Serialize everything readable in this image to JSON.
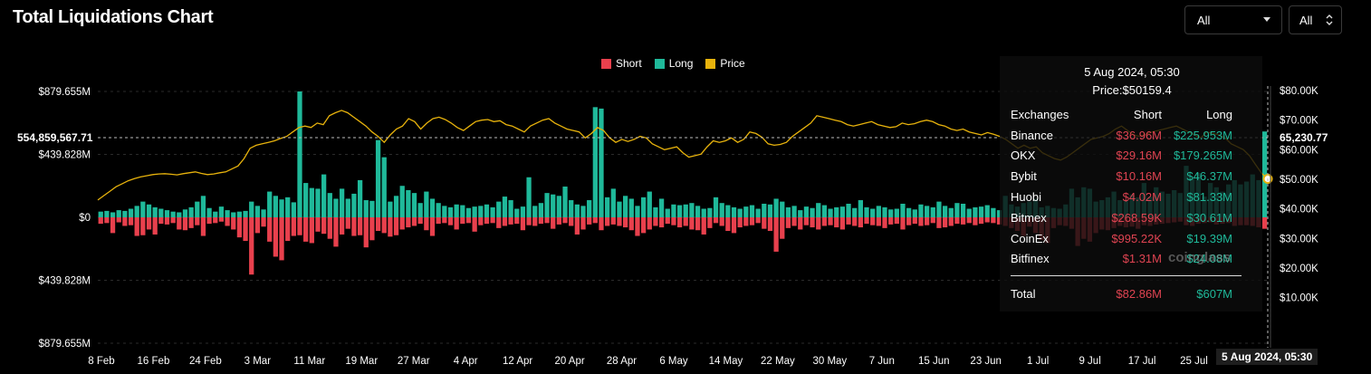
{
  "header": {
    "title": "Total Liquidations Chart"
  },
  "controls": {
    "exchange_select": {
      "value": "All",
      "icon": "chevron-down-icon"
    },
    "coin_select": {
      "value": "All",
      "icon": "up-down-chevron-icon"
    }
  },
  "colors": {
    "short": "#e8404d",
    "long": "#1fb99a",
    "price": "#e8b30c"
  },
  "tooltip": {
    "date": "5 Aug 2024, 05:30",
    "price": "Price:$50159.4",
    "headers": [
      "Exchanges",
      "Short",
      "Long"
    ],
    "rows": [
      {
        "exchange": "Binance",
        "short": "$36.96M",
        "long": "$225.953M"
      },
      {
        "exchange": "OKX",
        "short": "$29.16M",
        "long": "$179.265M"
      },
      {
        "exchange": "Bybit",
        "short": "$10.16M",
        "long": "$46.37M"
      },
      {
        "exchange": "Huobi",
        "short": "$4.02M",
        "long": "$81.33M"
      },
      {
        "exchange": "Bitmex",
        "short": "$268.59K",
        "long": "$30.61M"
      },
      {
        "exchange": "CoinEx",
        "short": "$995.22K",
        "long": "$19.39M"
      },
      {
        "exchange": "Bitfinex",
        "short": "$1.31M",
        "long": "$24.08M"
      }
    ],
    "total": {
      "label": "Total",
      "short": "$82.86M",
      "long": "$607M"
    }
  },
  "watermark": "coinglass",
  "crosshair": {
    "left_value": "554,859,567.71",
    "right_value": "65,230.77",
    "x_value": "5 Aug 2024, 05:30"
  },
  "chart_data": {
    "type": "bar",
    "title": "Total Liquidations Chart",
    "legend": [
      "Short",
      "Long",
      "Price"
    ],
    "legend_position": "top-center",
    "y_left": {
      "ticks": [
        "$879.655M",
        "$439.828M",
        "$0",
        "$439.828M",
        "$879.655M"
      ],
      "range": [
        -879.655,
        879.655
      ],
      "unit": "M USD"
    },
    "y_right": {
      "ticks": [
        "$80.00K",
        "$70.00K",
        "$60.00K",
        "$50.00K",
        "$40.00K",
        "$30.00K",
        "$20.00K",
        "$10.00K"
      ],
      "range": [
        5000,
        80000
      ]
    },
    "x_ticks": [
      "8 Feb",
      "16 Feb",
      "24 Feb",
      "3 Mar",
      "11 Mar",
      "19 Mar",
      "27 Mar",
      "4 Apr",
      "12 Apr",
      "20 Apr",
      "28 Apr",
      "6 May",
      "14 May",
      "22 May",
      "30 May",
      "7 Jun",
      "15 Jun",
      "23 Jun",
      "1 Jul",
      "9 Jul",
      "17 Jul",
      "25 Jul"
    ],
    "series": [
      {
        "name": "Long",
        "values": [
          40,
          45,
          35,
          50,
          45,
          60,
          80,
          110,
          90,
          70,
          60,
          50,
          40,
          35,
          55,
          70,
          110,
          150,
          65,
          40,
          75,
          50,
          35,
          40,
          45,
          110,
          80,
          55,
          180,
          150,
          125,
          140,
          105,
          880,
          240,
          205,
          200,
          300,
          170,
          130,
          200,
          130,
          165,
          260,
          120,
          115,
          540,
          420,
          110,
          150,
          220,
          190,
          170,
          100,
          180,
          130,
          100,
          80,
          70,
          90,
          85,
          65,
          75,
          80,
          90,
          70,
          110,
          145,
          120,
          60,
          75,
          280,
          80,
          100,
          170,
          160,
          150,
          215,
          120,
          90,
          80,
          120,
          770,
          760,
          140,
          200,
          110,
          150,
          130,
          80,
          140,
          180,
          70,
          130,
          60,
          90,
          85,
          90,
          100,
          80,
          60,
          65,
          140,
          100,
          85,
          70,
          60,
          75,
          85,
          60,
          95,
          90,
          130,
          110,
          70,
          80,
          50,
          75,
          65,
          100,
          85,
          60,
          70,
          75,
          95,
          65,
          120,
          70,
          60,
          80,
          70,
          55,
          60,
          95,
          65,
          55,
          90,
          80,
          70,
          110,
          80,
          65,
          100,
          95,
          60,
          70,
          75,
          85,
          65,
          50,
          150,
          90,
          75,
          100,
          110,
          130,
          70,
          80,
          65,
          60,
          90,
          200,
          140,
          210,
          200,
          110,
          120,
          140,
          180,
          120,
          120,
          160,
          140,
          240,
          145,
          210,
          180,
          165,
          190,
          170,
          360,
          275,
          310,
          145,
          240,
          210,
          180,
          230,
          260,
          230,
          250,
          300,
          260,
          600
        ]
      },
      {
        "name": "Short",
        "values": [
          45,
          40,
          110,
          35,
          60,
          55,
          130,
          125,
          85,
          120,
          45,
          50,
          40,
          85,
          90,
          75,
          55,
          130,
          45,
          40,
          30,
          60,
          85,
          140,
          165,
          400,
          110,
          65,
          170,
          275,
          300,
          165,
          130,
          125,
          170,
          180,
          100,
          115,
          150,
          205,
          120,
          80,
          130,
          125,
          210,
          160,
          95,
          110,
          135,
          125,
          85,
          70,
          60,
          45,
          90,
          130,
          45,
          40,
          55,
          85,
          45,
          40,
          100,
          55,
          45,
          40,
          75,
          60,
          50,
          45,
          90,
          55,
          60,
          45,
          40,
          80,
          50,
          40,
          60,
          120,
          85,
          50,
          40,
          90,
          60,
          50,
          60,
          70,
          90,
          130,
          110,
          85,
          60,
          70,
          45,
          55,
          70,
          60,
          85,
          90,
          120,
          75,
          40,
          60,
          95,
          110,
          70,
          60,
          55,
          40,
          80,
          95,
          240,
          150,
          75,
          60,
          85,
          55,
          70,
          85,
          60,
          55,
          70,
          85,
          50,
          60,
          70,
          45,
          55,
          60,
          75,
          50,
          45,
          85,
          55,
          45,
          60,
          55,
          40,
          75,
          70,
          60,
          45,
          50,
          40,
          55,
          45,
          35,
          40,
          50,
          60,
          75,
          95,
          130,
          65,
          110,
          160,
          180,
          75,
          55,
          60,
          80,
          200,
          150,
          170,
          110,
          85,
          90,
          75,
          60,
          70,
          65,
          80,
          55,
          60,
          50,
          45,
          40,
          35,
          30,
          55,
          60,
          45,
          40,
          35,
          50,
          45,
          40,
          60,
          55,
          55,
          60,
          70,
          80
        ]
      },
      {
        "name": "Price",
        "values": [
          43000,
          44500,
          46000,
          47500,
          48500,
          49500,
          50200,
          50800,
          51200,
          51600,
          51800,
          51900,
          51700,
          51500,
          51900,
          52200,
          52500,
          52000,
          51600,
          51800,
          52200,
          52500,
          53500,
          54500,
          57000,
          60500,
          61500,
          62000,
          62500,
          63000,
          63800,
          64500,
          66000,
          67500,
          68000,
          67500,
          69000,
          68500,
          71500,
          72500,
          73300,
          72500,
          71000,
          69500,
          68000,
          66000,
          64500,
          62500,
          65000,
          67000,
          68000,
          70500,
          69500,
          67000,
          69000,
          70500,
          71000,
          70200,
          69000,
          67500,
          66500,
          68000,
          69500,
          70000,
          70200,
          69500,
          69800,
          68500,
          68000,
          67000,
          66000,
          68000,
          69000,
          70000,
          70500,
          69000,
          68000,
          67000,
          66500,
          66000,
          64000,
          65500,
          67500,
          66500,
          64000,
          62500,
          63500,
          62800,
          63500,
          64500,
          64000,
          62000,
          61000,
          60000,
          60500,
          61000,
          59000,
          57500,
          58000,
          58500,
          61000,
          63000,
          62500,
          63000,
          64000,
          62500,
          63500,
          66000,
          65500,
          64200,
          62000,
          61500,
          61800,
          62500,
          64500,
          66000,
          67500,
          69000,
          71500,
          71000,
          70500,
          70000,
          69500,
          68500,
          68000,
          68500,
          69000,
          69500,
          68500,
          68000,
          67500,
          67800,
          69000,
          68500,
          68800,
          69500,
          70000,
          69500,
          68500,
          68000,
          67000,
          66500,
          67000,
          66000,
          65500,
          65000,
          65800,
          65200,
          64500,
          63500,
          62000,
          60500,
          61500,
          60500,
          61000,
          59000,
          58000,
          57000,
          56500,
          57500,
          59000,
          60500,
          62000,
          63500,
          64000,
          64500,
          65500,
          67000,
          68000,
          66500,
          65000,
          64500,
          65200,
          66000,
          66500,
          67000,
          67500,
          68000,
          67000,
          66000,
          65000,
          64000,
          66000,
          65500,
          65000,
          64000,
          62000,
          61000,
          60000,
          58000,
          55000,
          52000,
          50159
        ]
      }
    ]
  }
}
